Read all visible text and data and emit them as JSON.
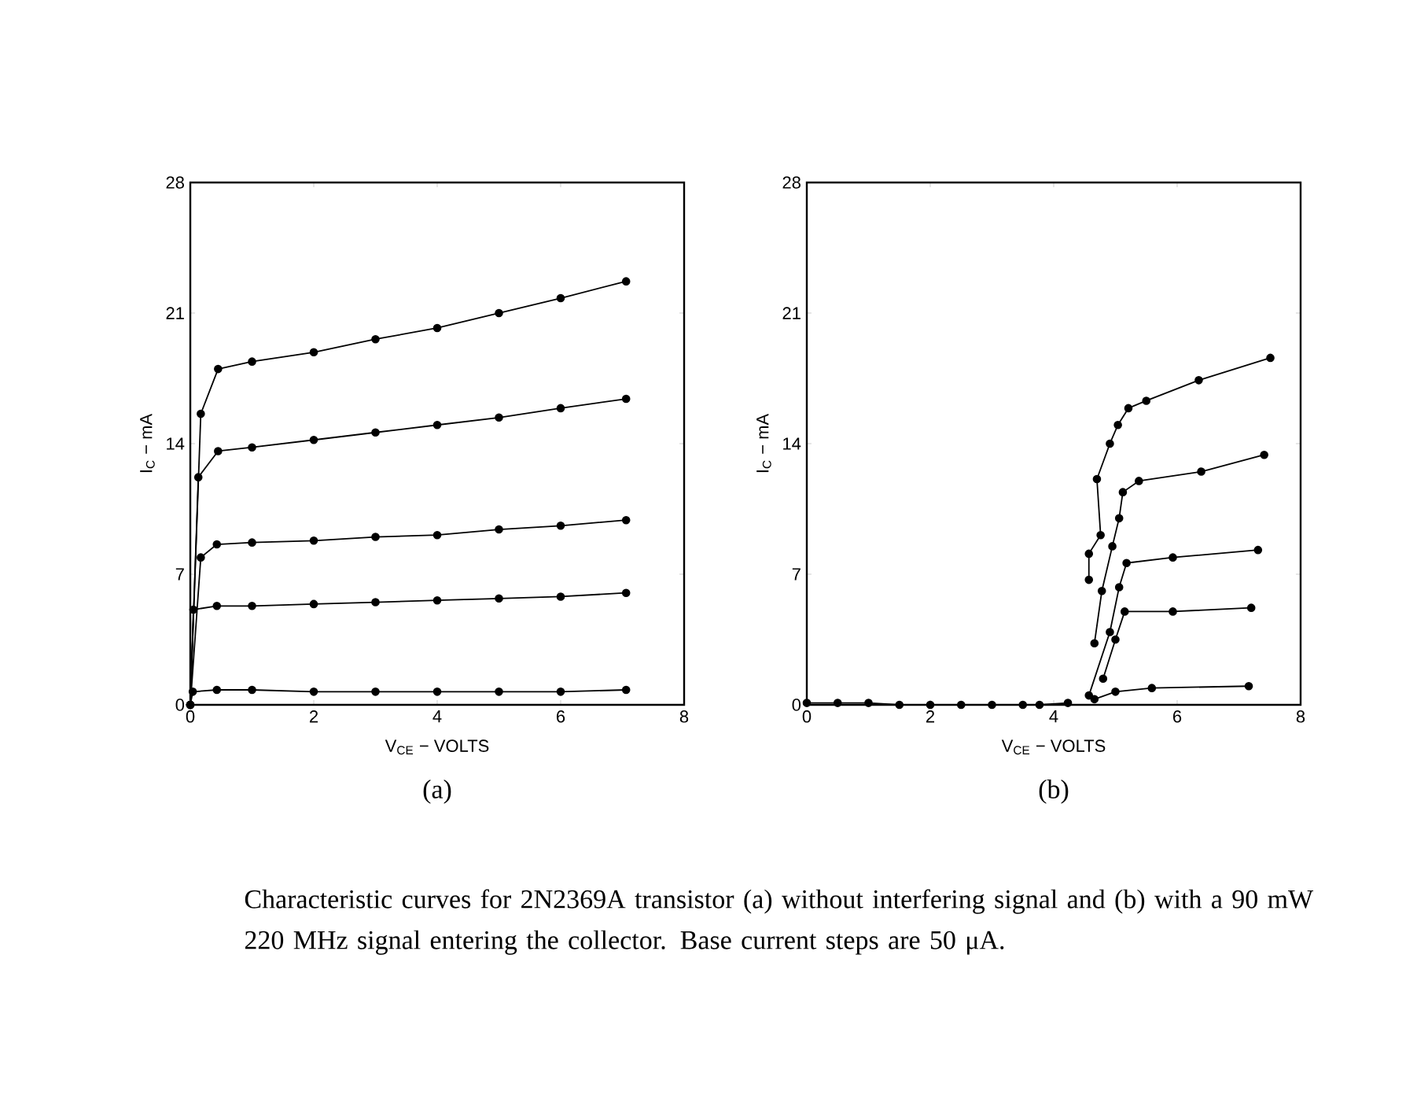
{
  "chart_data": [
    {
      "type": "line",
      "title": "(a)",
      "xlabel": "V$_{CE}$ − VOLTS",
      "ylabel": "I$_{C}$ − mA",
      "xlim": [
        0,
        8
      ],
      "ylim": [
        0,
        28
      ],
      "xticks": [
        0,
        2,
        4,
        6,
        8
      ],
      "yticks": [
        0,
        7,
        14,
        21,
        28
      ],
      "grid": false,
      "marker": "circle",
      "line_style": "solid",
      "annotations": [
        "Characteristic curves for 2N2369A transistor (a) without interfering signal and (b) with a 90 mW  220 MHz signal entering the collector. Base current steps are 50 μA."
      ],
      "series": [
        {
          "color": "#000000",
          "x": [
            0,
            0.17,
            0.45,
            1,
            2,
            3,
            4,
            5,
            6,
            7.06
          ],
          "values": [
            0,
            15.6,
            18.0,
            18.4,
            18.9,
            19.6,
            20.2,
            21.0,
            21.8,
            22.7
          ]
        },
        {
          "color": "#000000",
          "x": [
            0,
            0.13,
            0.45,
            1,
            2,
            3,
            4,
            5,
            6,
            7.06
          ],
          "values": [
            0,
            12.2,
            13.6,
            13.8,
            14.2,
            14.6,
            15.0,
            15.4,
            15.9,
            16.4
          ]
        },
        {
          "color": "#000000",
          "x": [
            0,
            0.17,
            0.43,
            1,
            2,
            3,
            4,
            5,
            6,
            7.06
          ],
          "values": [
            0,
            7.9,
            8.6,
            8.7,
            8.8,
            9.0,
            9.1,
            9.4,
            9.6,
            9.9
          ]
        },
        {
          "color": "#000000",
          "x": [
            0,
            0.05,
            0.43,
            1,
            2,
            3,
            4,
            5,
            6,
            7.06
          ],
          "values": [
            0,
            5.1,
            5.3,
            5.3,
            5.4,
            5.5,
            5.6,
            5.7,
            5.8,
            6.0
          ]
        },
        {
          "color": "#000000",
          "x": [
            0,
            0.04,
            0.43,
            1,
            2,
            3,
            4,
            5,
            6,
            7.06
          ],
          "values": [
            0,
            0.7,
            0.8,
            0.8,
            0.7,
            0.7,
            0.7,
            0.7,
            0.7,
            0.8
          ]
        }
      ]
    },
    {
      "type": "line",
      "title": "(b)",
      "xlabel": "V$_{CE}$ − VOLTS",
      "ylabel": "I$_{C}$ − mA",
      "xlim": [
        0,
        8
      ],
      "ylim": [
        0,
        28
      ],
      "xticks": [
        0,
        2,
        4,
        6,
        8
      ],
      "yticks": [
        0,
        7,
        14,
        21,
        28
      ],
      "grid": false,
      "marker": "circle",
      "line_style": "solid",
      "series": [
        {
          "color": "#000000",
          "x": [
            0,
            0.5,
            1,
            1.5,
            2,
            2.5,
            3,
            3.5,
            3.77,
            4.23
          ],
          "values": [
            0.1,
            0.1,
            0.1,
            0,
            0,
            0,
            0,
            0,
            0,
            0.1
          ]
        },
        {
          "color": "#000000",
          "x": [
            4.57,
            4.57,
            4.76,
            4.7,
            4.91,
            5.04,
            5.21,
            5.5,
            6.35,
            7.51
          ],
          "values": [
            6.7,
            8.1,
            9.1,
            12.1,
            14.0,
            15.0,
            15.9,
            16.3,
            17.4,
            18.6
          ]
        },
        {
          "color": "#000000",
          "x": [
            4.66,
            4.78,
            4.95,
            5.06,
            5.12,
            5.38,
            6.39,
            7.41
          ],
          "values": [
            3.3,
            6.1,
            8.5,
            10.0,
            11.4,
            12.0,
            12.5,
            13.4
          ]
        },
        {
          "color": "#000000",
          "x": [
            4.57,
            4.91,
            5.06,
            5.18,
            5.93,
            7.31
          ],
          "values": [
            0.5,
            3.9,
            6.3,
            7.6,
            7.9,
            8.3
          ]
        },
        {
          "color": "#000000",
          "x": [
            4.8,
            5.0,
            5.15,
            5.93,
            7.2
          ],
          "values": [
            1.4,
            3.5,
            5.0,
            5.0,
            5.2
          ]
        },
        {
          "color": "#000000",
          "x": [
            4.66,
            5.0,
            5.59,
            7.16
          ],
          "values": [
            0.3,
            0.7,
            0.9,
            1.0
          ]
        }
      ]
    }
  ]
}
